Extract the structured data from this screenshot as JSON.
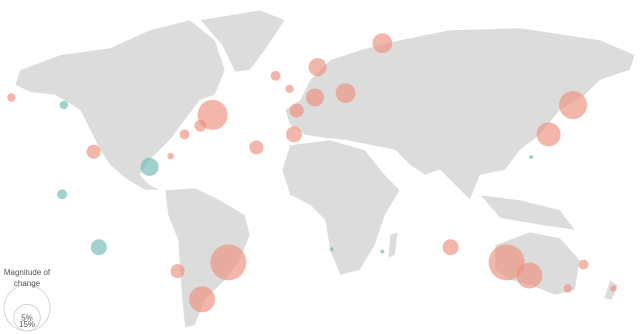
{
  "legend": {
    "title": "Magnitude of change",
    "sizes": [
      {
        "value": 5,
        "label": "5%"
      },
      {
        "value": 15,
        "label": "15%"
      }
    ]
  },
  "bubbles": [
    {
      "lon": -167,
      "lat": 53,
      "value": 0.5,
      "color": "#ec8f7d"
    },
    {
      "lon": -137,
      "lat": 49.5,
      "value": 0.5,
      "color": "#6fb8b4"
    },
    {
      "lon": -120,
      "lat": 28,
      "value": 1.4,
      "color": "#ec8f7d"
    },
    {
      "lon": -138,
      "lat": 8.4,
      "value": 0.7,
      "color": "#6fb8b4"
    },
    {
      "lon": -117,
      "lat": -16,
      "value": 1.8,
      "color": "#6fb8b4"
    },
    {
      "lon": -88,
      "lat": 21,
      "value": 2.3,
      "color": "#6fb8b4"
    },
    {
      "lon": -76,
      "lat": 26,
      "value": 0.3,
      "color": "#ec8f7d"
    },
    {
      "lon": -68,
      "lat": 36,
      "value": 0.7,
      "color": "#ec8f7d"
    },
    {
      "lon": -59,
      "lat": 40,
      "value": 1.0,
      "color": "#ec8f7d"
    },
    {
      "lon": -52,
      "lat": 45,
      "value": 6.4,
      "color": "#ec8f7d"
    },
    {
      "lon": -27,
      "lat": 30,
      "value": 1.4,
      "color": "#ec8f7d"
    },
    {
      "lon": -16,
      "lat": 63,
      "value": 0.7,
      "color": "#ec8f7d"
    },
    {
      "lon": -8,
      "lat": 57,
      "value": 0.5,
      "color": "#ec8f7d"
    },
    {
      "lon": -4,
      "lat": 47,
      "value": 1.4,
      "color": "#ec8f7d"
    },
    {
      "lon": -5.5,
      "lat": 36,
      "value": 1.8,
      "color": "#ec8f7d"
    },
    {
      "lon": 6.5,
      "lat": 53,
      "value": 2.3,
      "color": "#ec8f7d"
    },
    {
      "lon": 8,
      "lat": 67,
      "value": 2.3,
      "color": "#ec8f7d"
    },
    {
      "lon": 24,
      "lat": 55,
      "value": 2.8,
      "color": "#ec8f7d"
    },
    {
      "lon": 45,
      "lat": 78,
      "value": 2.8,
      "color": "#ec8f7d"
    },
    {
      "lon": 154,
      "lat": 49.5,
      "value": 5.6,
      "color": "#ec8f7d"
    },
    {
      "lon": 140,
      "lat": 36,
      "value": 4.1,
      "color": "#ec8f7d"
    },
    {
      "lon": 130,
      "lat": 25.5,
      "value": 0.1,
      "color": "#6fb8b4"
    },
    {
      "lon": 84,
      "lat": -16,
      "value": 1.8,
      "color": "#ec8f7d"
    },
    {
      "lon": 116,
      "lat": -23,
      "value": 9.2,
      "color": "#ec8f7d"
    },
    {
      "lon": 129,
      "lat": -29,
      "value": 4.8,
      "color": "#ec8f7d"
    },
    {
      "lon": 160,
      "lat": -24,
      "value": 0.7,
      "color": "#ec8f7d"
    },
    {
      "lon": 151,
      "lat": -35,
      "value": 0.5,
      "color": "#ec8f7d"
    },
    {
      "lon": 177,
      "lat": -35,
      "value": 0.3,
      "color": "#ec8f7d"
    },
    {
      "lon": -43,
      "lat": -23,
      "value": 9.2,
      "color": "#ec8f7d"
    },
    {
      "lon": -72,
      "lat": -27,
      "value": 1.4,
      "color": "#ec8f7d"
    },
    {
      "lon": -58,
      "lat": -40,
      "value": 4.8,
      "color": "#ec8f7d"
    },
    {
      "lon": 16,
      "lat": -17,
      "value": 0.1,
      "color": "#6fb8b4"
    },
    {
      "lon": 45,
      "lat": -18,
      "value": 0.1,
      "color": "#6fb8b4"
    }
  ]
}
